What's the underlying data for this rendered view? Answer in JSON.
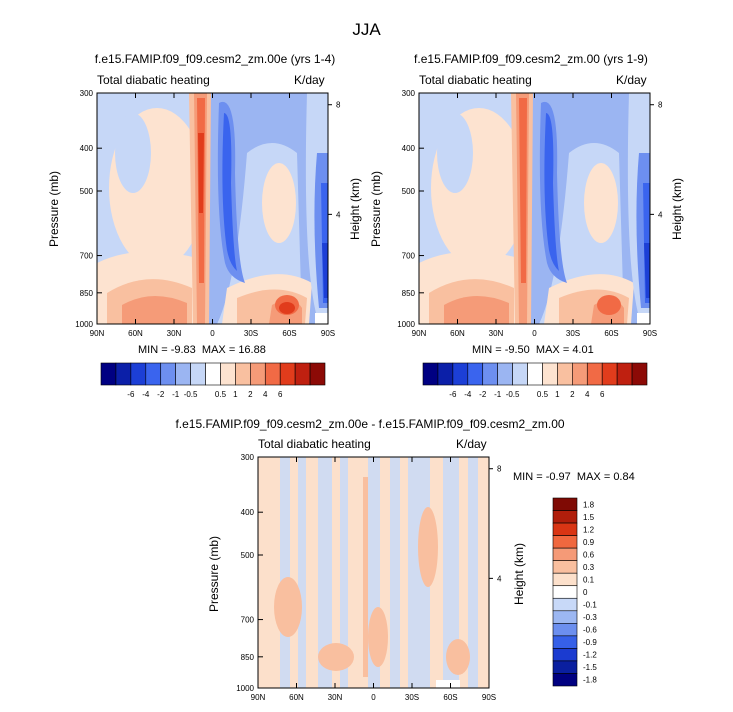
{
  "page": {
    "title": "JJA"
  },
  "colors": {
    "palette": [
      "#000082",
      "#0b1fa8",
      "#1c3fd6",
      "#3a64ee",
      "#6d8ff0",
      "#9bb5f2",
      "#c6d7f7",
      "#ffffff",
      "#fde3d0",
      "#f9c0a0",
      "#f59b78",
      "#f16a45",
      "#e13c1c",
      "#bf2010",
      "#8c0a06"
    ],
    "diff_palette": [
      "#000080",
      "#0a1f9f",
      "#1b3bd0",
      "#3660e8",
      "#6c8fef",
      "#9cb7f2",
      "#c8d9f8",
      "#ffffff",
      "#fce0cb",
      "#f9bf9f",
      "#f59a77",
      "#f0683f",
      "#d93514",
      "#b01e0b",
      "#7f0a04"
    ]
  },
  "chart_data": [
    {
      "type": "contour",
      "title": "f.e15.FAMIP.f09_f09.cesm2_zm.00e (yrs 1-4)",
      "left_label": "Total diabatic heating",
      "right_label": "K/day",
      "ylabel": "Pressure (mb)",
      "y2label": "Height (km)",
      "x_ticks": [
        "90N",
        "60N",
        "30N",
        "0",
        "30S",
        "60S",
        "90S"
      ],
      "y_ticks": [
        "300",
        "400",
        "500",
        "700",
        "850",
        "1000"
      ],
      "y2_ticks": [
        "8",
        "4"
      ],
      "stats": {
        "min_label": "MIN =",
        "min": "-9.83",
        "max_label": "MAX =",
        "max": "16.88"
      },
      "colorbar_ticks": [
        "-6",
        "-4",
        "-2",
        "-1",
        "-0.5",
        "0.5",
        "1",
        "2",
        "4",
        "6"
      ]
    },
    {
      "type": "contour",
      "title": "f.e15.FAMIP.f09_f09.cesm2_zm.00 (yrs 1-9)",
      "left_label": "Total diabatic heating",
      "right_label": "K/day",
      "ylabel": "Pressure (mb)",
      "y2label": "Height (km)",
      "x_ticks": [
        "90N",
        "60N",
        "30N",
        "0",
        "30S",
        "60S",
        "90S"
      ],
      "y_ticks": [
        "300",
        "400",
        "500",
        "700",
        "850",
        "1000"
      ],
      "y2_ticks": [
        "8",
        "4"
      ],
      "stats": {
        "min_label": "MIN =",
        "min": "-9.50",
        "max_label": "MAX =",
        "max": "4.01"
      },
      "colorbar_ticks": [
        "-6",
        "-4",
        "-2",
        "-1",
        "-0.5",
        "0.5",
        "1",
        "2",
        "4",
        "6"
      ]
    },
    {
      "type": "contour",
      "title": "f.e15.FAMIP.f09_f09.cesm2_zm.00e - f.e15.FAMIP.f09_f09.cesm2_zm.00",
      "left_label": "Total diabatic heating",
      "right_label": "K/day",
      "ylabel": "Pressure (mb)",
      "y2label": "Height (km)",
      "x_ticks": [
        "90N",
        "60N",
        "30N",
        "0",
        "30S",
        "60S",
        "90S"
      ],
      "y_ticks": [
        "300",
        "400",
        "500",
        "700",
        "850",
        "1000"
      ],
      "y2_ticks": [
        "8",
        "4"
      ],
      "stats": {
        "min_label": "MIN =",
        "min": "-0.97",
        "max_label": "MAX =",
        "max": "0.84"
      },
      "colorbar_ticks": [
        "1.8",
        "1.5",
        "1.2",
        "0.9",
        "0.6",
        "0.3",
        "0.1",
        "0",
        "-0.1",
        "-0.3",
        "-0.6",
        "-0.9",
        "-1.2",
        "-1.5",
        "-1.8"
      ]
    }
  ]
}
